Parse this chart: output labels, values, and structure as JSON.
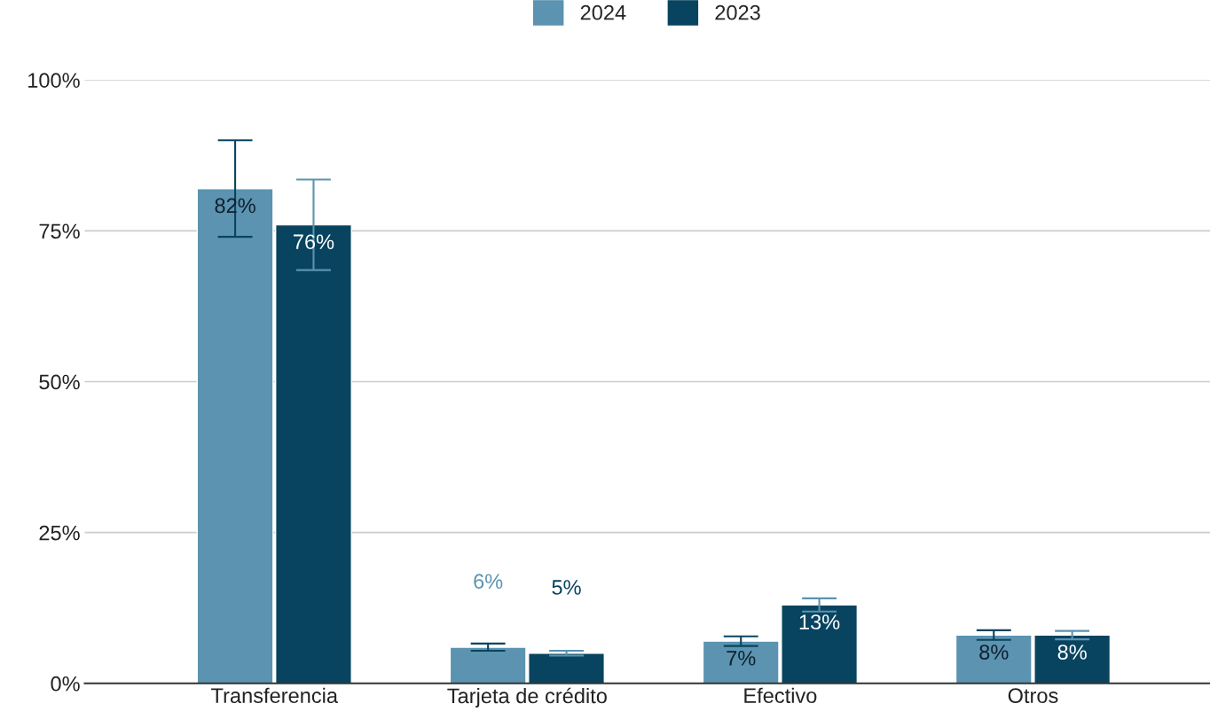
{
  "chart_data": {
    "type": "bar",
    "categories": [
      "Transferencia",
      "Tarjeta de crédito",
      "Efectivo",
      "Otros"
    ],
    "series": [
      {
        "name": "2024",
        "color": "#5b93b0",
        "values": [
          82,
          6,
          7,
          8
        ],
        "errors": [
          8,
          0.6,
          0.8,
          0.8
        ],
        "value_labels": [
          "82%",
          "6%",
          "7%",
          "8%"
        ]
      },
      {
        "name": "2023",
        "color": "#08445f",
        "values": [
          76,
          5,
          13,
          8
        ],
        "errors": [
          7.5,
          0.4,
          1.1,
          0.7
        ],
        "value_labels": [
          "76%",
          "5%",
          "13%",
          "8%"
        ]
      }
    ],
    "ylim": [
      0,
      100
    ],
    "yticks": [
      {
        "value": 0,
        "label": "0%"
      },
      {
        "value": 25,
        "label": "25%"
      },
      {
        "value": 50,
        "label": "50%"
      },
      {
        "value": 75,
        "label": "75%"
      },
      {
        "value": 100,
        "label": "100%"
      }
    ],
    "grid": "y",
    "legend": "top"
  }
}
